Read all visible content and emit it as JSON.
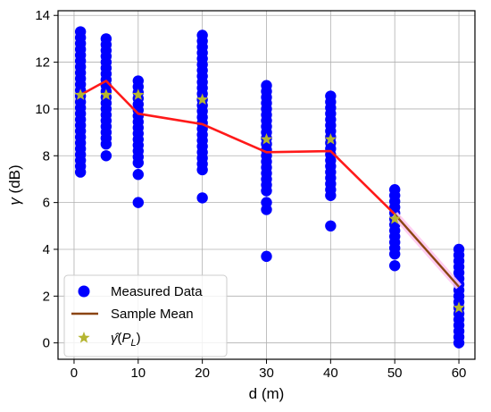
{
  "chart_data": {
    "type": "scatter",
    "title": "",
    "xlabel": "d (m)",
    "ylabel": "γ (dB)",
    "xlim": [
      -2.5,
      62.5
    ],
    "ylim": [
      -0.7,
      14.2
    ],
    "xticks": [
      0,
      10,
      20,
      30,
      40,
      50,
      60
    ],
    "yticks": [
      0,
      2,
      4,
      6,
      8,
      10,
      12,
      14
    ],
    "grid": true,
    "legend_position": "bottom-left",
    "colors": {
      "measured": "#0000ff",
      "sample_mean_red": "#ff1a1a",
      "sample_mean_brown": "#8b4513",
      "estimate": "#b5b531"
    },
    "series": [
      {
        "name": "Measured Data",
        "marker": "circle",
        "points": [
          {
            "d": 1,
            "range": [
              7.3,
              13.4
            ],
            "outliers": []
          },
          {
            "d": 5,
            "range": [
              8.5,
              13.2
            ],
            "outliers": [
              8.0
            ]
          },
          {
            "d": 10,
            "range": [
              7.7,
              11.2
            ],
            "outliers": [
              7.2,
              6.0
            ]
          },
          {
            "d": 20,
            "range": [
              7.4,
              13.2
            ],
            "outliers": [
              6.2
            ]
          },
          {
            "d": 30,
            "range": [
              6.5,
              11.0
            ],
            "outliers": [
              6.0,
              5.7,
              3.7
            ]
          },
          {
            "d": 40,
            "range": [
              6.3,
              10.7
            ],
            "outliers": [
              5.0
            ]
          },
          {
            "d": 50,
            "range": [
              3.8,
              6.7
            ],
            "outliers": [
              3.3
            ]
          },
          {
            "d": 60,
            "range": [
              0.0,
              4.2
            ],
            "outliers": []
          }
        ]
      },
      {
        "name": "Sample Mean",
        "marker": "line",
        "x": [
          1,
          5,
          10,
          20,
          30,
          40,
          50,
          60
        ],
        "y": [
          10.6,
          11.2,
          9.8,
          9.35,
          8.15,
          8.2,
          5.5,
          2.4
        ]
      },
      {
        "name": "γ̂(P_L)",
        "marker": "star",
        "x": [
          1,
          5,
          10,
          20,
          30,
          40,
          50,
          60
        ],
        "y": [
          10.6,
          10.6,
          10.6,
          10.4,
          8.7,
          8.7,
          5.3,
          1.5
        ]
      }
    ],
    "legend": [
      {
        "label": "Measured Data"
      },
      {
        "label": "Sample Mean"
      },
      {
        "label": "γ̂(P_L)"
      }
    ]
  }
}
